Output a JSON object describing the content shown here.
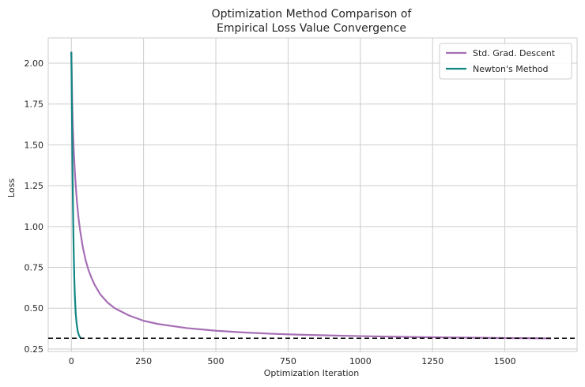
{
  "chart_data": {
    "type": "line",
    "title_lines": [
      "Optimization Method Comparison of",
      "Empirical Loss Value Convergence"
    ],
    "xlabel": "Optimization Iteration",
    "ylabel": "Loss",
    "xlim": [
      -80,
      1750
    ],
    "ylim": [
      0.235,
      2.155
    ],
    "x_ticks": [
      0,
      250,
      500,
      750,
      1000,
      1250,
      1500
    ],
    "y_ticks": [
      0.25,
      0.5,
      0.75,
      1.0,
      1.25,
      1.5,
      1.75,
      2.0
    ],
    "y_tick_labels": [
      "0.25",
      "0.50",
      "0.75",
      "1.00",
      "1.25",
      "1.50",
      "1.75",
      "2.00"
    ],
    "grid": true,
    "legend_position": "top-right",
    "reference_line": {
      "y": 0.316,
      "style": "dashed",
      "color": "#000000"
    },
    "series": [
      {
        "name": "Std. Grad. Descent",
        "color": "#a66fb5",
        "x": [
          0,
          3,
          5,
          8,
          12,
          16,
          20,
          25,
          30,
          40,
          50,
          60,
          70,
          80,
          100,
          125,
          150,
          200,
          250,
          300,
          400,
          500,
          600,
          700,
          800,
          900,
          1000,
          1100,
          1200,
          1300,
          1400,
          1500,
          1600,
          1660
        ],
        "y": [
          2.07,
          1.77,
          1.62,
          1.48,
          1.34,
          1.23,
          1.14,
          1.05,
          0.98,
          0.87,
          0.79,
          0.73,
          0.685,
          0.645,
          0.585,
          0.535,
          0.5,
          0.455,
          0.423,
          0.403,
          0.378,
          0.362,
          0.351,
          0.343,
          0.337,
          0.333,
          0.329,
          0.326,
          0.323,
          0.321,
          0.319,
          0.317,
          0.316,
          0.315
        ]
      },
      {
        "name": "Newton's Method",
        "color": "#128683",
        "x": [
          0,
          2,
          4,
          6,
          8,
          10,
          12,
          15,
          18,
          22,
          26,
          30,
          33
        ],
        "y": [
          2.07,
          1.7,
          1.35,
          1.08,
          0.86,
          0.7,
          0.58,
          0.47,
          0.41,
          0.36,
          0.335,
          0.322,
          0.318
        ]
      }
    ]
  }
}
